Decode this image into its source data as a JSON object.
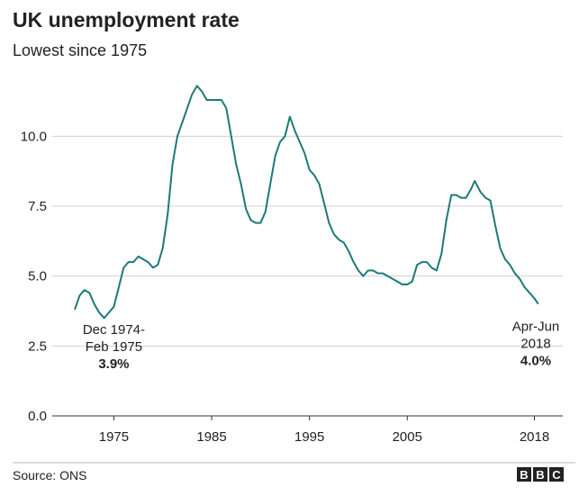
{
  "chart_data": {
    "type": "line",
    "title": "UK unemployment rate",
    "subtitle": "Lowest since 1975",
    "x": [
      1971.0,
      1971.5,
      1972.0,
      1972.5,
      1973.0,
      1973.5,
      1974.0,
      1974.5,
      1975.0,
      1975.5,
      1976.0,
      1976.5,
      1977.0,
      1977.5,
      1978.0,
      1978.5,
      1979.0,
      1979.5,
      1980.0,
      1980.5,
      1981.0,
      1981.5,
      1982.0,
      1982.5,
      1983.0,
      1983.5,
      1984.0,
      1984.5,
      1985.0,
      1985.5,
      1986.0,
      1986.5,
      1987.0,
      1987.5,
      1988.0,
      1988.5,
      1989.0,
      1989.5,
      1990.0,
      1990.5,
      1991.0,
      1991.5,
      1992.0,
      1992.5,
      1993.0,
      1993.5,
      1994.0,
      1994.5,
      1995.0,
      1995.5,
      1996.0,
      1996.5,
      1997.0,
      1997.5,
      1998.0,
      1998.5,
      1999.0,
      1999.5,
      2000.0,
      2000.5,
      2001.0,
      2001.5,
      2002.0,
      2002.5,
      2003.0,
      2003.5,
      2004.0,
      2004.5,
      2005.0,
      2005.5,
      2006.0,
      2006.5,
      2007.0,
      2007.5,
      2008.0,
      2008.5,
      2009.0,
      2009.5,
      2010.0,
      2010.5,
      2011.0,
      2011.5,
      2011.9,
      2012.5,
      2013.0,
      2013.5,
      2014.0,
      2014.5,
      2015.0,
      2015.5,
      2016.0,
      2016.5,
      2017.0,
      2017.5,
      2018.0,
      2018.4
    ],
    "series": [
      {
        "name": "Unemployment rate",
        "color": "#1d7a78",
        "values": [
          3.8,
          4.3,
          4.5,
          4.4,
          4.0,
          3.7,
          3.5,
          3.7,
          3.9,
          4.6,
          5.3,
          5.5,
          5.5,
          5.7,
          5.6,
          5.5,
          5.3,
          5.4,
          6.0,
          7.2,
          9.0,
          10.0,
          10.5,
          11.0,
          11.5,
          11.8,
          11.6,
          11.3,
          11.3,
          11.3,
          11.3,
          11.0,
          10.0,
          9.0,
          8.3,
          7.4,
          7.0,
          6.9,
          6.9,
          7.3,
          8.3,
          9.3,
          9.8,
          10.0,
          10.7,
          10.2,
          9.8,
          9.4,
          8.8,
          8.6,
          8.3,
          7.6,
          6.9,
          6.5,
          6.3,
          6.2,
          5.9,
          5.5,
          5.2,
          5.0,
          5.2,
          5.2,
          5.1,
          5.1,
          5.0,
          4.9,
          4.8,
          4.7,
          4.7,
          4.8,
          5.4,
          5.5,
          5.5,
          5.3,
          5.2,
          5.8,
          7.0,
          7.9,
          7.9,
          7.8,
          7.8,
          8.1,
          8.4,
          8.0,
          7.8,
          7.7,
          6.8,
          6.0,
          5.6,
          5.4,
          5.1,
          4.9,
          4.6,
          4.4,
          4.2,
          4.0
        ]
      }
    ],
    "xlim": [
      1968.7,
      2020.9
    ],
    "xticks": [
      1975,
      1985,
      1995,
      2005,
      2018
    ],
    "ylim": [
      0,
      12.2
    ],
    "yticks": [
      {
        "value": 0,
        "label": "0.0"
      },
      {
        "value": 2.5,
        "label": "2.5"
      },
      {
        "value": 5,
        "label": "5.0"
      },
      {
        "value": 7.5,
        "label": "7.5"
      },
      {
        "value": 10,
        "label": "10.0"
      }
    ],
    "grid": true,
    "annotations": [
      {
        "lines": [
          "Dec 1974-",
          "Feb 1975"
        ],
        "value_label": "3.9%",
        "x": 1975.0,
        "y": 3.9
      },
      {
        "lines": [
          "Apr-Jun",
          "2018"
        ],
        "value_label": "4.0%",
        "x": 2018.4,
        "y": 4.0
      }
    ],
    "source": "Source: ONS",
    "logo": [
      "B",
      "B",
      "C"
    ]
  }
}
